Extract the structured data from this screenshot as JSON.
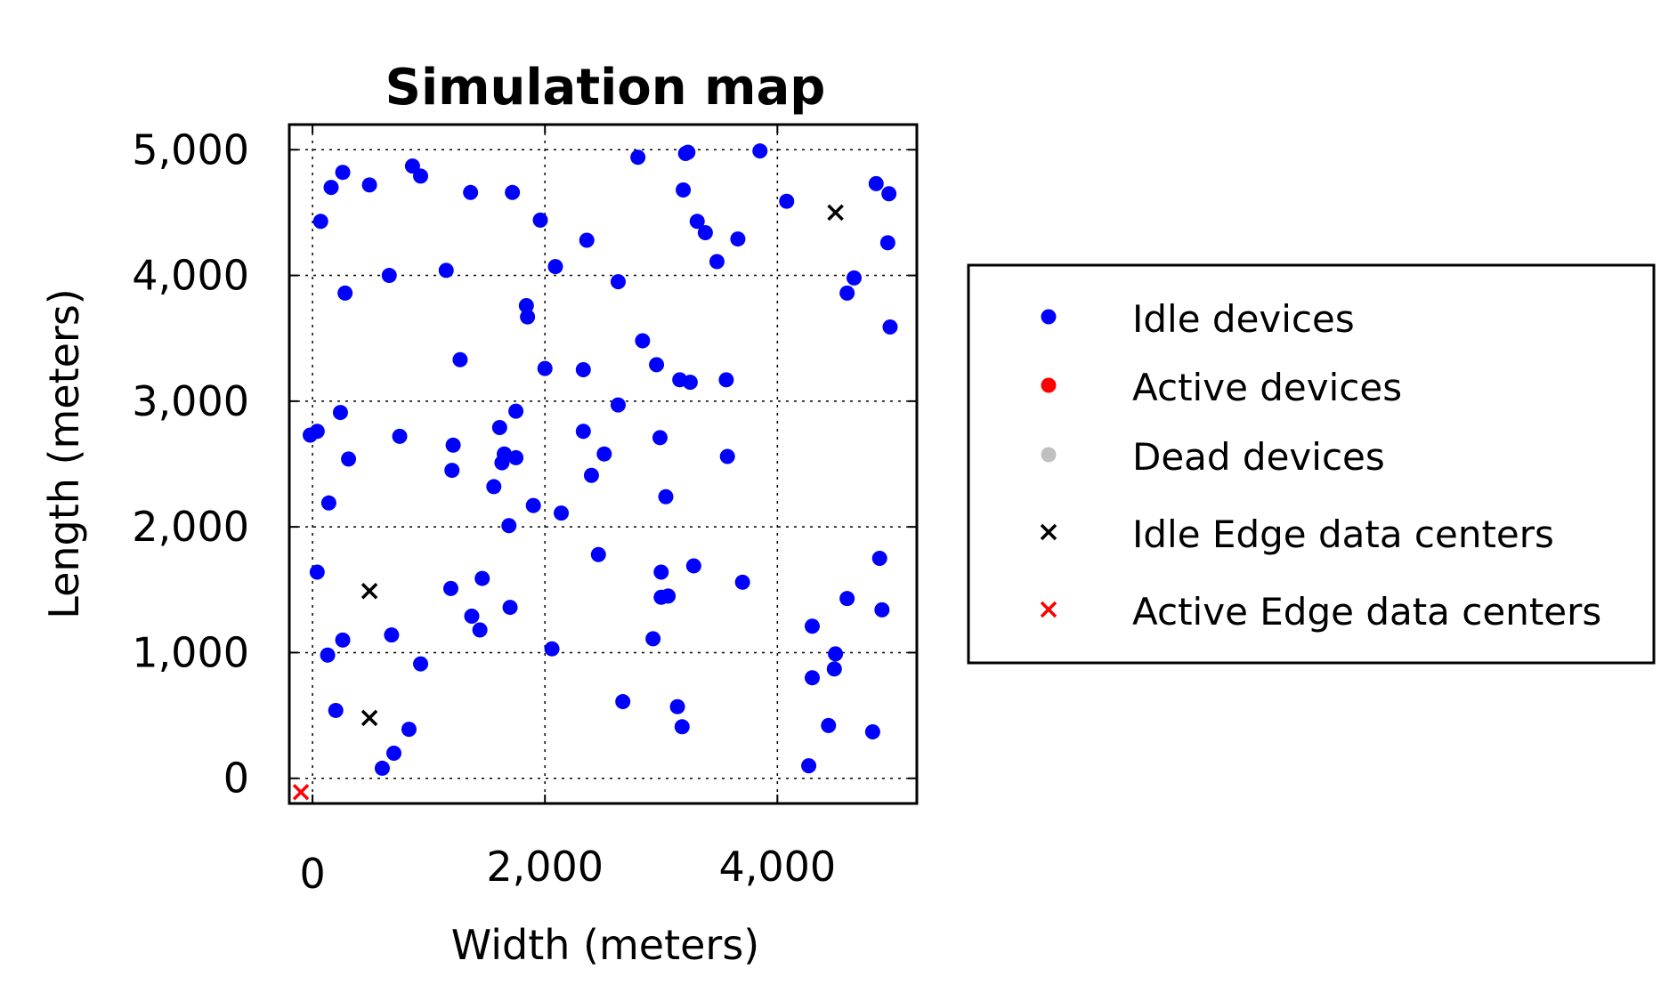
{
  "chart_data": {
    "type": "scatter",
    "title": "Simulation map",
    "xlabel": "Width (meters)",
    "ylabel": "Length (meters)",
    "xlim": [
      -200,
      5200
    ],
    "ylim": [
      -200,
      5200
    ],
    "x_ticks": [
      {
        "v": 0,
        "label": "0"
      },
      {
        "v": 2000,
        "label": "2,000"
      },
      {
        "v": 4000,
        "label": "4,000"
      }
    ],
    "y_ticks": [
      {
        "v": 0,
        "label": "0"
      },
      {
        "v": 1000,
        "label": "1,000"
      },
      {
        "v": 2000,
        "label": "2,000"
      },
      {
        "v": 3000,
        "label": "3,000"
      },
      {
        "v": 4000,
        "label": "4,000"
      },
      {
        "v": 5000,
        "label": "5,000"
      }
    ],
    "grid": true,
    "legend_position": "right",
    "colors": {
      "idle_devices": "#0000ff",
      "active_devices": "#ff0000",
      "dead_devices": "#c0c0c0",
      "idle_edge": "#000000",
      "active_edge": "#ff0000"
    },
    "series": [
      {
        "name": "Idle devices",
        "marker": "dot",
        "color": "#0000ff",
        "points": [
          [
            -20,
            2730
          ],
          [
            40,
            2760
          ],
          [
            70,
            4430
          ],
          [
            160,
            4700
          ],
          [
            260,
            4820
          ],
          [
            490,
            4720
          ],
          [
            860,
            4870
          ],
          [
            930,
            4790
          ],
          [
            1360,
            4660
          ],
          [
            1720,
            4660
          ],
          [
            1960,
            4440
          ],
          [
            2360,
            4280
          ],
          [
            2090,
            4070
          ],
          [
            1150,
            4040
          ],
          [
            660,
            4000
          ],
          [
            280,
            3860
          ],
          [
            1840,
            3760
          ],
          [
            1850,
            3670
          ],
          [
            1270,
            3330
          ],
          [
            2000,
            3260
          ],
          [
            2330,
            3250
          ],
          [
            2630,
            3950
          ],
          [
            2800,
            4940
          ],
          [
            3210,
            4970
          ],
          [
            3230,
            4980
          ],
          [
            3190,
            4680
          ],
          [
            3310,
            4430
          ],
          [
            3380,
            4340
          ],
          [
            3660,
            4290
          ],
          [
            3480,
            4110
          ],
          [
            3850,
            4990
          ],
          [
            4080,
            4590
          ],
          [
            4850,
            4730
          ],
          [
            4960,
            4650
          ],
          [
            4950,
            4260
          ],
          [
            4660,
            3980
          ],
          [
            4600,
            3860
          ],
          [
            4970,
            3590
          ],
          [
            2840,
            3480
          ],
          [
            2960,
            3290
          ],
          [
            3160,
            3170
          ],
          [
            3250,
            3150
          ],
          [
            3560,
            3170
          ],
          [
            2630,
            2970
          ],
          [
            1750,
            2920
          ],
          [
            240,
            2910
          ],
          [
            750,
            2720
          ],
          [
            1210,
            2650
          ],
          [
            1610,
            2790
          ],
          [
            2330,
            2760
          ],
          [
            2990,
            2710
          ],
          [
            310,
            2540
          ],
          [
            1650,
            2580
          ],
          [
            1630,
            2510
          ],
          [
            1750,
            2550
          ],
          [
            2510,
            2580
          ],
          [
            3570,
            2560
          ],
          [
            1200,
            2450
          ],
          [
            2400,
            2410
          ],
          [
            1560,
            2320
          ],
          [
            3040,
            2240
          ],
          [
            140,
            2190
          ],
          [
            1900,
            2170
          ],
          [
            2140,
            2110
          ],
          [
            1690,
            2010
          ],
          [
            2460,
            1780
          ],
          [
            40,
            1640
          ],
          [
            3000,
            1640
          ],
          [
            3280,
            1690
          ],
          [
            3700,
            1560
          ],
          [
            1460,
            1590
          ],
          [
            1190,
            1510
          ],
          [
            1700,
            1360
          ],
          [
            3000,
            1440
          ],
          [
            3060,
            1450
          ],
          [
            1370,
            1290
          ],
          [
            1440,
            1180
          ],
          [
            680,
            1140
          ],
          [
            260,
            1100
          ],
          [
            2930,
            1110
          ],
          [
            2060,
            1030
          ],
          [
            130,
            980
          ],
          [
            930,
            910
          ],
          [
            4300,
            1210
          ],
          [
            4600,
            1430
          ],
          [
            4880,
            1750
          ],
          [
            4900,
            1340
          ],
          [
            4500,
            990
          ],
          [
            4490,
            870
          ],
          [
            4300,
            800
          ],
          [
            200,
            540
          ],
          [
            2670,
            610
          ],
          [
            3140,
            570
          ],
          [
            3180,
            410
          ],
          [
            830,
            390
          ],
          [
            700,
            200
          ],
          [
            600,
            80
          ],
          [
            4440,
            420
          ],
          [
            4820,
            370
          ],
          [
            4270,
            100
          ]
        ]
      },
      {
        "name": "Active devices",
        "marker": "dot",
        "color": "#ff0000",
        "points": []
      },
      {
        "name": "Dead devices",
        "marker": "dot",
        "color": "#c0c0c0",
        "points": []
      },
      {
        "name": "Idle Edge data centers",
        "marker": "x",
        "color": "#000000",
        "points": [
          [
            490,
            1490
          ],
          [
            490,
            480
          ],
          [
            4500,
            4500
          ]
        ]
      },
      {
        "name": "Active Edge data centers",
        "marker": "x",
        "color": "#ff0000",
        "points": [
          [
            -100,
            -110
          ]
        ]
      }
    ]
  }
}
